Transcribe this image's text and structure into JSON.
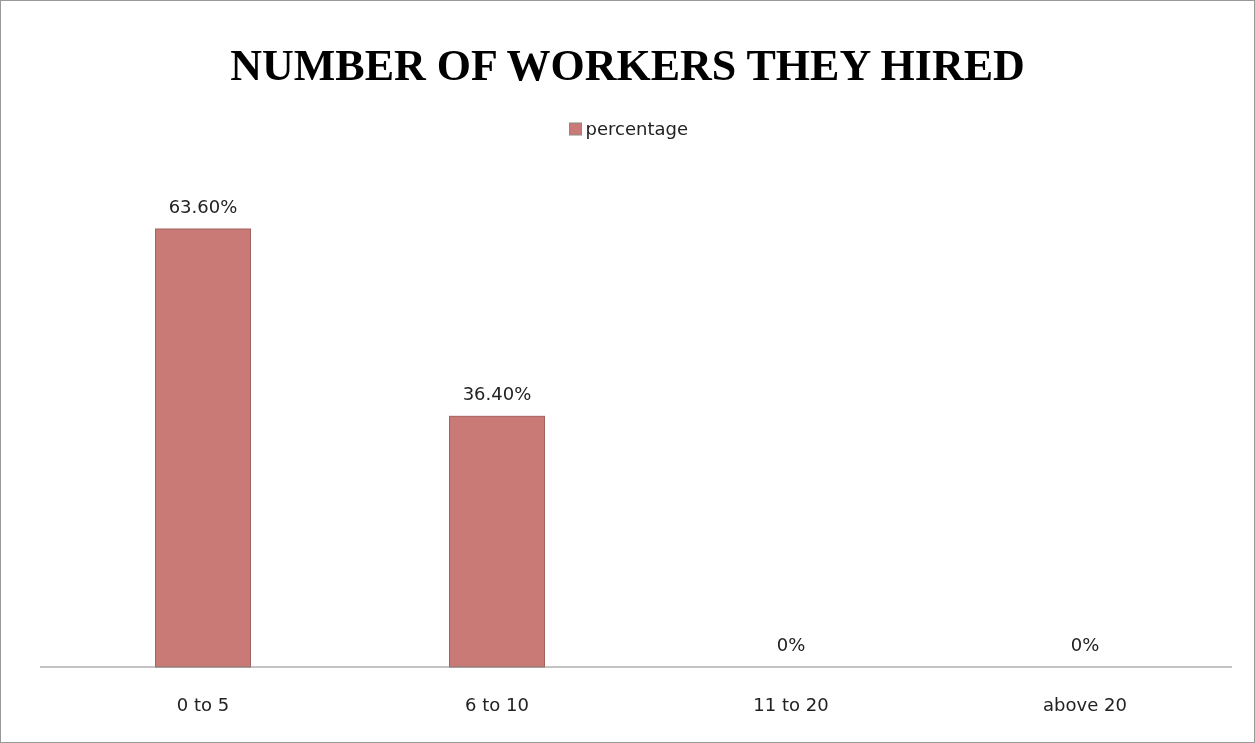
{
  "chart_data": {
    "type": "bar",
    "title": "NUMBER OF WORKERS THEY HIRED",
    "categories": [
      "0 to 5",
      "6 to 10",
      "11 to 20",
      "above 20"
    ],
    "series": [
      {
        "name": "percentage",
        "color": "#c97a76",
        "values": [
          63.6,
          36.4,
          0,
          0
        ],
        "value_labels": [
          "63.60%",
          "36.40%",
          "0%",
          "0%"
        ]
      }
    ],
    "legend": "top",
    "grid": false
  }
}
